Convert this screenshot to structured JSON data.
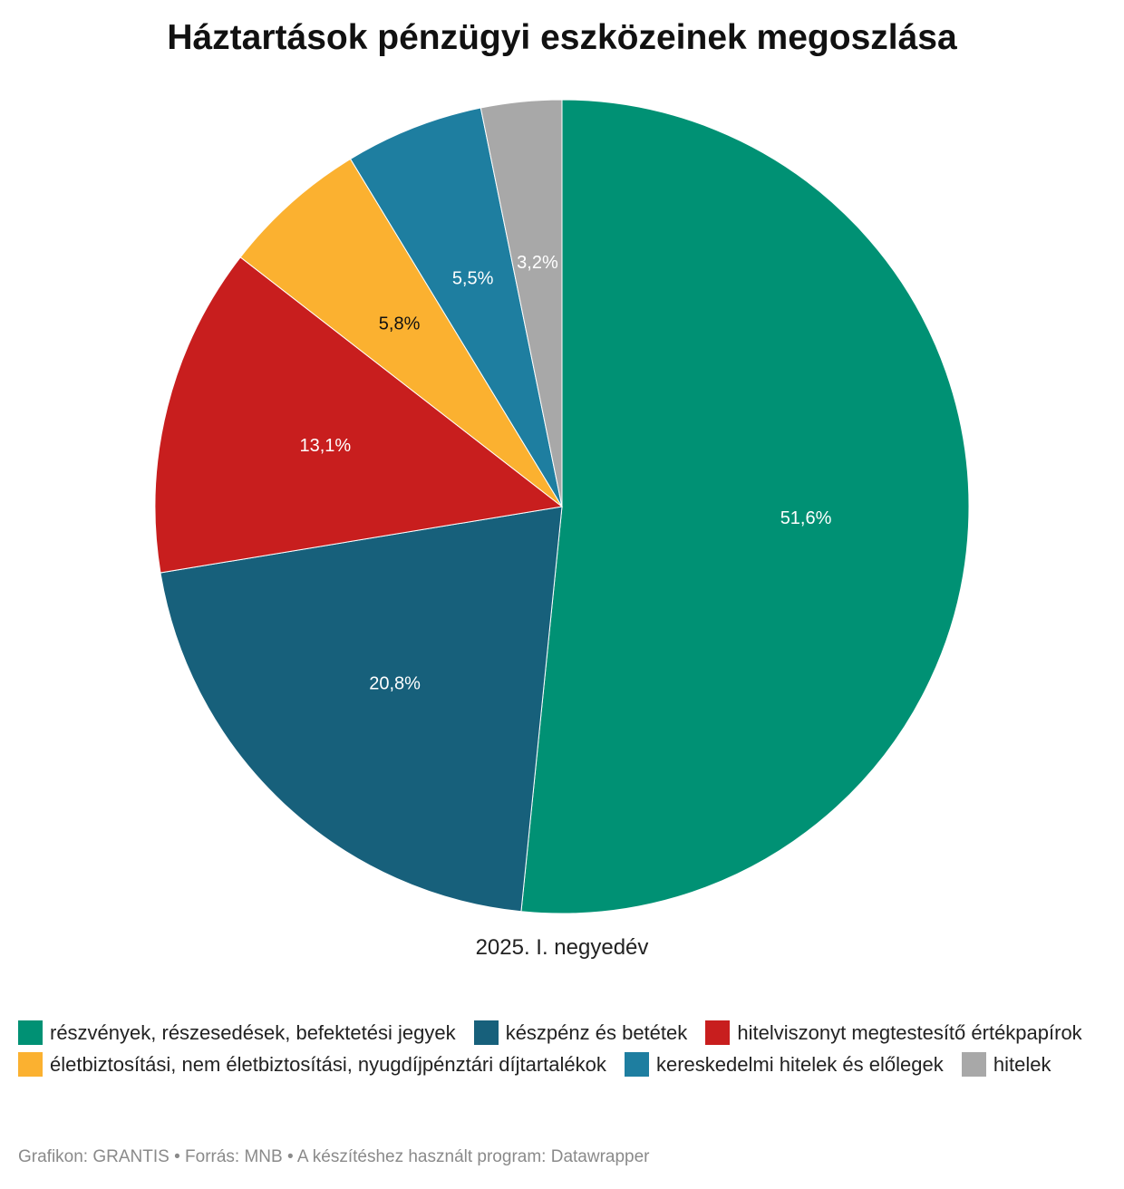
{
  "title": "Háztartások pénzügyi eszközeinek megoszlása",
  "chart_data": {
    "type": "pie",
    "title": "Háztartások pénzügyi eszközeinek megoszlása",
    "caption": "2025. I. negyedév",
    "unit": "%",
    "slices": [
      {
        "label": "részvények, részesedések, befektetési jegyek",
        "value": 51.6,
        "display": "51,6%",
        "color": "#009174",
        "text_color": "#ffffff"
      },
      {
        "label": "készpénz és betétek",
        "value": 20.8,
        "display": "20,8%",
        "color": "#17607b",
        "text_color": "#ffffff"
      },
      {
        "label": "hitelviszonyt megtestesítő értékpapírok",
        "value": 13.1,
        "display": "13,1%",
        "color": "#c81e1e",
        "text_color": "#ffffff"
      },
      {
        "label": "életbiztosítási, nem életbiztosítási, nyugdíjpénztári díjtartalékok",
        "value": 5.8,
        "display": "5,8%",
        "color": "#fbb130",
        "text_color": "#111111"
      },
      {
        "label": "kereskedelmi hitelek és előlegek",
        "value": 5.5,
        "display": "5,5%",
        "color": "#1e7ea0",
        "text_color": "#ffffff"
      },
      {
        "label": "hitelek",
        "value": 3.2,
        "display": "3,2%",
        "color": "#a8a8a8",
        "text_color": "#ffffff"
      }
    ]
  },
  "footer": "Grafikon: GRANTIS • Forrás: MNB • A készítéshez használt program: Datawrapper"
}
